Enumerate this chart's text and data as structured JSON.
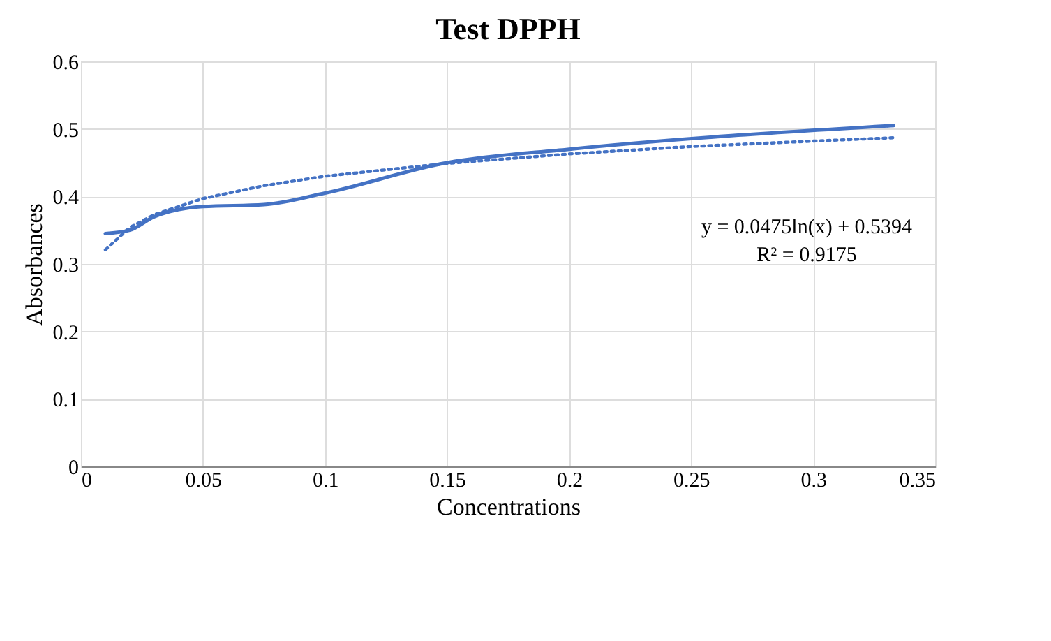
{
  "chart_data": {
    "type": "line",
    "title": "Test DPPH",
    "xlabel": "Concentrations",
    "ylabel": "Absorbances",
    "xlim": [
      0,
      0.35
    ],
    "xticks": [
      0,
      0.05,
      0.1,
      0.15,
      0.2,
      0.25,
      0.3,
      0.35
    ],
    "ylim": [
      0,
      0.6
    ],
    "yticks": [
      0,
      0.1,
      0.2,
      0.3,
      0.4,
      0.5,
      0.6
    ],
    "grid": true,
    "marker": "none",
    "series": [
      {
        "color": "#4472c4",
        "line_style": "solid",
        "x": [
          0.01,
          0.02,
          0.03,
          0.05,
          0.075,
          0.1,
          0.15,
          0.2,
          0.333
        ],
        "values": [
          0.345,
          0.35,
          0.37,
          0.385,
          0.388,
          0.405,
          0.45,
          0.47,
          0.505
        ]
      },
      {
        "color": "#4472c4",
        "line_style": "dotted",
        "x": [
          0.01,
          0.02,
          0.03,
          0.05,
          0.075,
          0.1,
          0.15,
          0.2,
          0.25,
          0.3,
          0.333
        ],
        "values": [
          0.321,
          0.354,
          0.373,
          0.397,
          0.416,
          0.43,
          0.449,
          0.463,
          0.474,
          0.482,
          0.487
        ]
      }
    ],
    "annotations": [
      "y = 0.0475ln(x)  + 0.5394",
      "R² = 0.9175"
    ]
  }
}
